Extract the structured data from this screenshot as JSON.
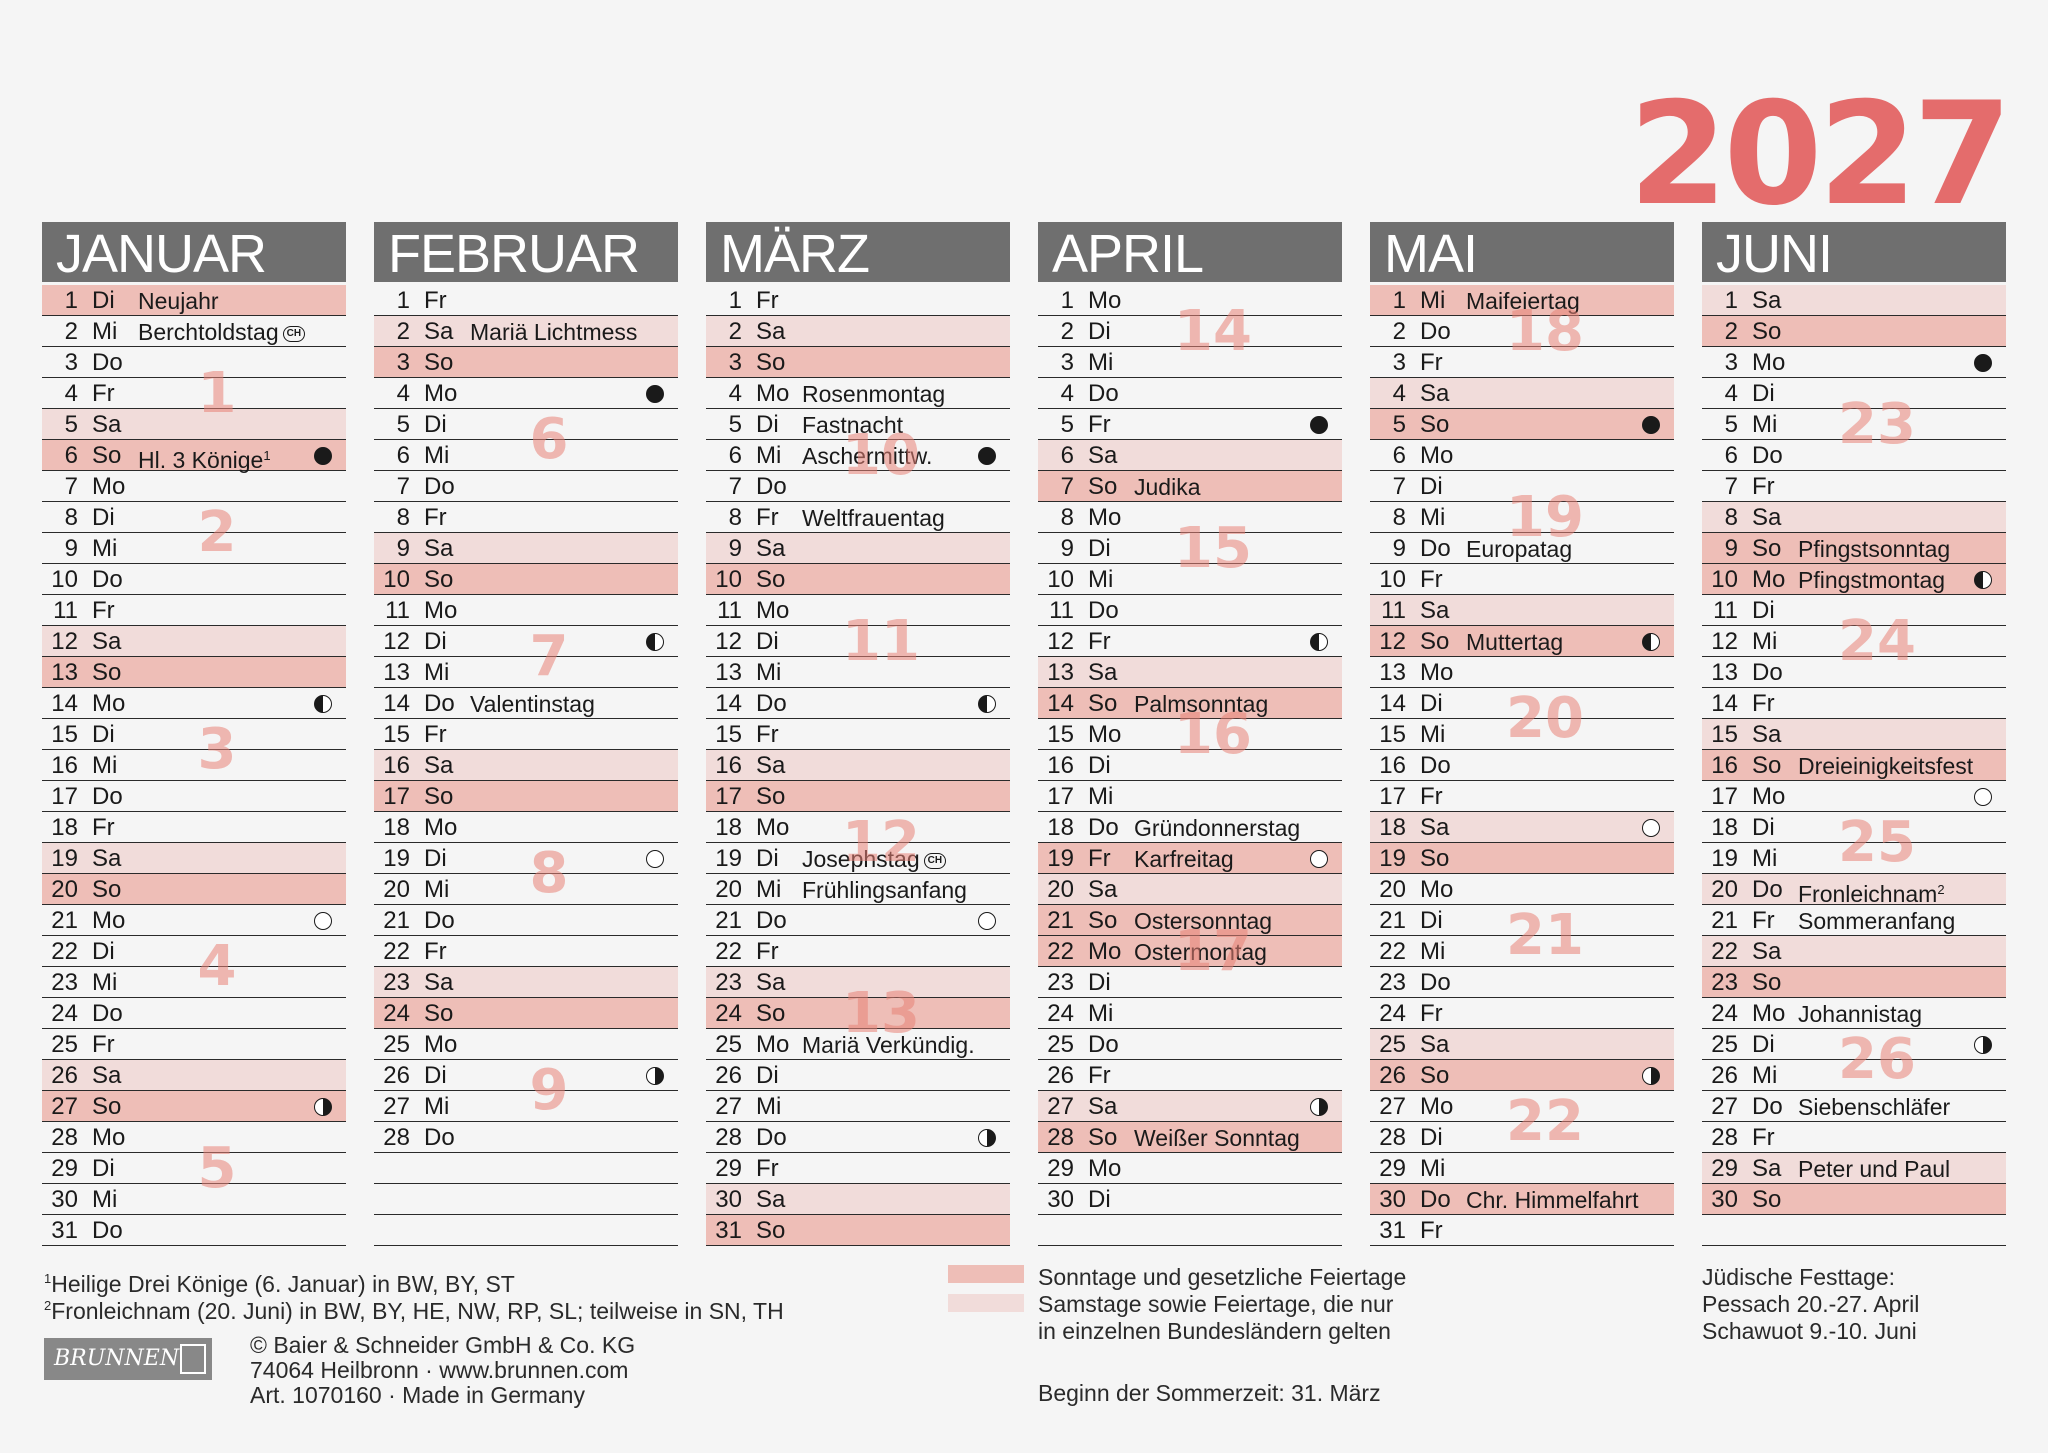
{
  "year": "2027",
  "months": [
    {
      "name": "JANUAR",
      "days": [
        {
          "d": "1",
          "w": "Di",
          "h": "Neujahr",
          "s": 1
        },
        {
          "d": "2",
          "w": "Mi",
          "h": "Berchtoldstag",
          "ch": "CH"
        },
        {
          "d": "3",
          "w": "Do"
        },
        {
          "d": "4",
          "w": "Fr"
        },
        {
          "d": "5",
          "w": "Sa",
          "s": 2
        },
        {
          "d": "6",
          "w": "So",
          "h": "Hl. 3 Könige",
          "sup": "1",
          "s": 1,
          "m": "new"
        },
        {
          "d": "7",
          "w": "Mo"
        },
        {
          "d": "8",
          "w": "Di"
        },
        {
          "d": "9",
          "w": "Mi"
        },
        {
          "d": "10",
          "w": "Do"
        },
        {
          "d": "11",
          "w": "Fr"
        },
        {
          "d": "12",
          "w": "Sa",
          "s": 2
        },
        {
          "d": "13",
          "w": "So",
          "s": 1
        },
        {
          "d": "14",
          "w": "Mo",
          "m": "lq"
        },
        {
          "d": "15",
          "w": "Di"
        },
        {
          "d": "16",
          "w": "Mi"
        },
        {
          "d": "17",
          "w": "Do"
        },
        {
          "d": "18",
          "w": "Fr"
        },
        {
          "d": "19",
          "w": "Sa",
          "s": 2
        },
        {
          "d": "20",
          "w": "So",
          "s": 1
        },
        {
          "d": "21",
          "w": "Mo",
          "m": "full"
        },
        {
          "d": "22",
          "w": "Di"
        },
        {
          "d": "23",
          "w": "Mi"
        },
        {
          "d": "24",
          "w": "Do"
        },
        {
          "d": "25",
          "w": "Fr"
        },
        {
          "d": "26",
          "w": "Sa",
          "s": 2
        },
        {
          "d": "27",
          "w": "So",
          "s": 1,
          "m": "fq"
        },
        {
          "d": "28",
          "w": "Mo"
        },
        {
          "d": "29",
          "w": "Di"
        },
        {
          "d": "30",
          "w": "Mi"
        },
        {
          "d": "31",
          "w": "Do"
        }
      ],
      "weeks": [
        {
          "n": "1",
          "r": 3.5
        },
        {
          "n": "2",
          "r": 8
        },
        {
          "n": "3",
          "r": 15
        },
        {
          "n": "4",
          "r": 22
        },
        {
          "n": "5",
          "r": 28.5
        }
      ]
    },
    {
      "name": "FEBRUAR",
      "days": [
        {
          "d": "1",
          "w": "Fr"
        },
        {
          "d": "2",
          "w": "Sa",
          "h": "Mariä Lichtmess",
          "s": 2
        },
        {
          "d": "3",
          "w": "So",
          "s": 1
        },
        {
          "d": "4",
          "w": "Mo",
          "m": "new"
        },
        {
          "d": "5",
          "w": "Di"
        },
        {
          "d": "6",
          "w": "Mi"
        },
        {
          "d": "7",
          "w": "Do"
        },
        {
          "d": "8",
          "w": "Fr"
        },
        {
          "d": "9",
          "w": "Sa",
          "s": 2
        },
        {
          "d": "10",
          "w": "So",
          "s": 1
        },
        {
          "d": "11",
          "w": "Mo"
        },
        {
          "d": "12",
          "w": "Di",
          "m": "lq"
        },
        {
          "d": "13",
          "w": "Mi"
        },
        {
          "d": "14",
          "w": "Do",
          "h": "Valentinstag"
        },
        {
          "d": "15",
          "w": "Fr"
        },
        {
          "d": "16",
          "w": "Sa",
          "s": 2
        },
        {
          "d": "17",
          "w": "So",
          "s": 1
        },
        {
          "d": "18",
          "w": "Mo"
        },
        {
          "d": "19",
          "w": "Di",
          "m": "full"
        },
        {
          "d": "20",
          "w": "Mi"
        },
        {
          "d": "21",
          "w": "Do"
        },
        {
          "d": "22",
          "w": "Fr"
        },
        {
          "d": "23",
          "w": "Sa",
          "s": 2
        },
        {
          "d": "24",
          "w": "So",
          "s": 1
        },
        {
          "d": "25",
          "w": "Mo"
        },
        {
          "d": "26",
          "w": "Di",
          "m": "fq"
        },
        {
          "d": "27",
          "w": "Mi"
        },
        {
          "d": "28",
          "w": "Do"
        }
      ],
      "weeks": [
        {
          "n": "6",
          "r": 5
        },
        {
          "n": "7",
          "r": 12
        },
        {
          "n": "8",
          "r": 19
        },
        {
          "n": "9",
          "r": 26
        }
      ]
    },
    {
      "name": "MÄRZ",
      "days": [
        {
          "d": "1",
          "w": "Fr"
        },
        {
          "d": "2",
          "w": "Sa",
          "s": 2
        },
        {
          "d": "3",
          "w": "So",
          "s": 1
        },
        {
          "d": "4",
          "w": "Mo",
          "h": "Rosenmontag"
        },
        {
          "d": "5",
          "w": "Di",
          "h": "Fastnacht"
        },
        {
          "d": "6",
          "w": "Mi",
          "h": "Aschermittw.",
          "m": "new"
        },
        {
          "d": "7",
          "w": "Do"
        },
        {
          "d": "8",
          "w": "Fr",
          "h": "Weltfrauentag"
        },
        {
          "d": "9",
          "w": "Sa",
          "s": 2
        },
        {
          "d": "10",
          "w": "So",
          "s": 1
        },
        {
          "d": "11",
          "w": "Mo"
        },
        {
          "d": "12",
          "w": "Di"
        },
        {
          "d": "13",
          "w": "Mi"
        },
        {
          "d": "14",
          "w": "Do",
          "m": "lq"
        },
        {
          "d": "15",
          "w": "Fr"
        },
        {
          "d": "16",
          "w": "Sa",
          "s": 2
        },
        {
          "d": "17",
          "w": "So",
          "s": 1
        },
        {
          "d": "18",
          "w": "Mo"
        },
        {
          "d": "19",
          "w": "Di",
          "h": "Josephstag",
          "ch": "CH"
        },
        {
          "d": "20",
          "w": "Mi",
          "h": "Frühlingsanfang"
        },
        {
          "d": "21",
          "w": "Do",
          "m": "full"
        },
        {
          "d": "22",
          "w": "Fr"
        },
        {
          "d": "23",
          "w": "Sa",
          "s": 2
        },
        {
          "d": "24",
          "w": "So",
          "s": 1
        },
        {
          "d": "25",
          "w": "Mo",
          "h": "Mariä Verkündig."
        },
        {
          "d": "26",
          "w": "Di"
        },
        {
          "d": "27",
          "w": "Mi"
        },
        {
          "d": "28",
          "w": "Do",
          "m": "fq"
        },
        {
          "d": "29",
          "w": "Fr"
        },
        {
          "d": "30",
          "w": "Sa",
          "s": 2
        },
        {
          "d": "31",
          "w": "So",
          "s": 1
        }
      ],
      "weeks": [
        {
          "n": "10",
          "r": 5.5
        },
        {
          "n": "11",
          "r": 11.5
        },
        {
          "n": "12",
          "r": 18
        },
        {
          "n": "13",
          "r": 23.5
        }
      ]
    },
    {
      "name": "APRIL",
      "days": [
        {
          "d": "1",
          "w": "Mo"
        },
        {
          "d": "2",
          "w": "Di"
        },
        {
          "d": "3",
          "w": "Mi"
        },
        {
          "d": "4",
          "w": "Do"
        },
        {
          "d": "5",
          "w": "Fr",
          "m": "new"
        },
        {
          "d": "6",
          "w": "Sa",
          "s": 2
        },
        {
          "d": "7",
          "w": "So",
          "h": "Judika",
          "s": 1
        },
        {
          "d": "8",
          "w": "Mo"
        },
        {
          "d": "9",
          "w": "Di"
        },
        {
          "d": "10",
          "w": "Mi"
        },
        {
          "d": "11",
          "w": "Do"
        },
        {
          "d": "12",
          "w": "Fr",
          "m": "lq"
        },
        {
          "d": "13",
          "w": "Sa",
          "s": 2
        },
        {
          "d": "14",
          "w": "So",
          "h": "Palmsonntag",
          "s": 1
        },
        {
          "d": "15",
          "w": "Mo"
        },
        {
          "d": "16",
          "w": "Di"
        },
        {
          "d": "17",
          "w": "Mi"
        },
        {
          "d": "18",
          "w": "Do",
          "h": "Gründonnerstag"
        },
        {
          "d": "19",
          "w": "Fr",
          "h": "Karfreitag",
          "s": 1,
          "m": "full"
        },
        {
          "d": "20",
          "w": "Sa",
          "s": 2
        },
        {
          "d": "21",
          "w": "So",
          "h": "Ostersonntag",
          "s": 1
        },
        {
          "d": "22",
          "w": "Mo",
          "h": "Ostermontag",
          "s": 1
        },
        {
          "d": "23",
          "w": "Di"
        },
        {
          "d": "24",
          "w": "Mi"
        },
        {
          "d": "25",
          "w": "Do"
        },
        {
          "d": "26",
          "w": "Fr"
        },
        {
          "d": "27",
          "w": "Sa",
          "s": 2,
          "m": "fq"
        },
        {
          "d": "28",
          "w": "So",
          "h": "Weißer Sonntag",
          "s": 1
        },
        {
          "d": "29",
          "w": "Mo"
        },
        {
          "d": "30",
          "w": "Di"
        }
      ],
      "weeks": [
        {
          "n": "14",
          "r": 1.5
        },
        {
          "n": "15",
          "r": 8.5
        },
        {
          "n": "16",
          "r": 14.5
        },
        {
          "n": "17",
          "r": 21.5
        }
      ]
    },
    {
      "name": "MAI",
      "days": [
        {
          "d": "1",
          "w": "Mi",
          "h": "Maifeiertag",
          "s": 1
        },
        {
          "d": "2",
          "w": "Do"
        },
        {
          "d": "3",
          "w": "Fr"
        },
        {
          "d": "4",
          "w": "Sa",
          "s": 2
        },
        {
          "d": "5",
          "w": "So",
          "s": 1,
          "m": "new"
        },
        {
          "d": "6",
          "w": "Mo"
        },
        {
          "d": "7",
          "w": "Di"
        },
        {
          "d": "8",
          "w": "Mi"
        },
        {
          "d": "9",
          "w": "Do",
          "h": "Europatag"
        },
        {
          "d": "10",
          "w": "Fr"
        },
        {
          "d": "11",
          "w": "Sa",
          "s": 2
        },
        {
          "d": "12",
          "w": "So",
          "h": "Muttertag",
          "s": 1,
          "m": "lq"
        },
        {
          "d": "13",
          "w": "Mo"
        },
        {
          "d": "14",
          "w": "Di"
        },
        {
          "d": "15",
          "w": "Mi"
        },
        {
          "d": "16",
          "w": "Do"
        },
        {
          "d": "17",
          "w": "Fr"
        },
        {
          "d": "18",
          "w": "Sa",
          "s": 2,
          "m": "full"
        },
        {
          "d": "19",
          "w": "So",
          "s": 1
        },
        {
          "d": "20",
          "w": "Mo"
        },
        {
          "d": "21",
          "w": "Di"
        },
        {
          "d": "22",
          "w": "Mi"
        },
        {
          "d": "23",
          "w": "Do"
        },
        {
          "d": "24",
          "w": "Fr"
        },
        {
          "d": "25",
          "w": "Sa",
          "s": 2
        },
        {
          "d": "26",
          "w": "So",
          "s": 1,
          "m": "fq"
        },
        {
          "d": "27",
          "w": "Mo"
        },
        {
          "d": "28",
          "w": "Di"
        },
        {
          "d": "29",
          "w": "Mi"
        },
        {
          "d": "30",
          "w": "Do",
          "h": "Chr. Himmelfahrt",
          "s": 1
        },
        {
          "d": "31",
          "w": "Fr"
        }
      ],
      "weeks": [
        {
          "n": "18",
          "r": 1.5
        },
        {
          "n": "19",
          "r": 7.5
        },
        {
          "n": "20",
          "r": 14
        },
        {
          "n": "21",
          "r": 21
        },
        {
          "n": "22",
          "r": 27
        }
      ]
    },
    {
      "name": "JUNI",
      "days": [
        {
          "d": "1",
          "w": "Sa",
          "s": 2
        },
        {
          "d": "2",
          "w": "So",
          "s": 1
        },
        {
          "d": "3",
          "w": "Mo",
          "m": "new"
        },
        {
          "d": "4",
          "w": "Di"
        },
        {
          "d": "5",
          "w": "Mi"
        },
        {
          "d": "6",
          "w": "Do"
        },
        {
          "d": "7",
          "w": "Fr"
        },
        {
          "d": "8",
          "w": "Sa",
          "s": 2
        },
        {
          "d": "9",
          "w": "So",
          "h": "Pfingstsonntag",
          "s": 1
        },
        {
          "d": "10",
          "w": "Mo",
          "h": "Pfingstmontag",
          "s": 1,
          "m": "lq"
        },
        {
          "d": "11",
          "w": "Di"
        },
        {
          "d": "12",
          "w": "Mi"
        },
        {
          "d": "13",
          "w": "Do"
        },
        {
          "d": "14",
          "w": "Fr"
        },
        {
          "d": "15",
          "w": "Sa",
          "s": 2
        },
        {
          "d": "16",
          "w": "So",
          "h": "Dreieinigkeitsfest",
          "s": 1
        },
        {
          "d": "17",
          "w": "Mo",
          "m": "full"
        },
        {
          "d": "18",
          "w": "Di"
        },
        {
          "d": "19",
          "w": "Mi"
        },
        {
          "d": "20",
          "w": "Do",
          "h": "Fronleichnam",
          "sup": "2",
          "s": 2
        },
        {
          "d": "21",
          "w": "Fr",
          "h": "Sommeranfang"
        },
        {
          "d": "22",
          "w": "Sa",
          "s": 2
        },
        {
          "d": "23",
          "w": "So",
          "s": 1
        },
        {
          "d": "24",
          "w": "Mo",
          "h": "Johannistag"
        },
        {
          "d": "25",
          "w": "Di",
          "m": "fq"
        },
        {
          "d": "26",
          "w": "Mi"
        },
        {
          "d": "27",
          "w": "Do",
          "h": "Siebenschläfer"
        },
        {
          "d": "28",
          "w": "Fr"
        },
        {
          "d": "29",
          "w": "Sa",
          "h": "Peter und Paul",
          "s": 2
        },
        {
          "d": "30",
          "w": "So",
          "s": 1
        }
      ],
      "weeks": [
        {
          "n": "23",
          "r": 4.5
        },
        {
          "n": "24",
          "r": 11.5
        },
        {
          "n": "25",
          "r": 18
        },
        {
          "n": "26",
          "r": 25
        }
      ]
    }
  ],
  "footnotes": {
    "fn1_mark": "1",
    "fn1_text": "Heilige Drei Könige (6. Januar) in BW, BY, ST",
    "fn2_mark": "2",
    "fn2_text": "Fronleichnam (20. Juni) in BW, BY, HE, NW, RP, SL; teilweise in SN, TH"
  },
  "legend": {
    "sundays": "Sonntage und gesetzliche Feiertage",
    "saturdays_1": "Samstage sowie Feiertage, die nur",
    "saturdays_2": "in einzelnen Bundesländern gelten",
    "dst": "Beginn der Sommerzeit: 31. März"
  },
  "jewish": {
    "title": "Jüdische Festtage:",
    "line1": "Pessach 20.-27. April",
    "line2": "Schawuot 9.-10. Juni"
  },
  "publisher": {
    "logo": "BRUNNEN",
    "line1": "© Baier & Schneider GmbH & Co. KG",
    "line2": "74064 Heilbronn · www.brunnen.com",
    "line3": "Art. 1070160 · Made in Germany"
  },
  "colors": {
    "accent": "#e46c6c",
    "holiday": "#eebeb7",
    "saturday": "#f1dcda",
    "header": "#6f6f6f"
  }
}
